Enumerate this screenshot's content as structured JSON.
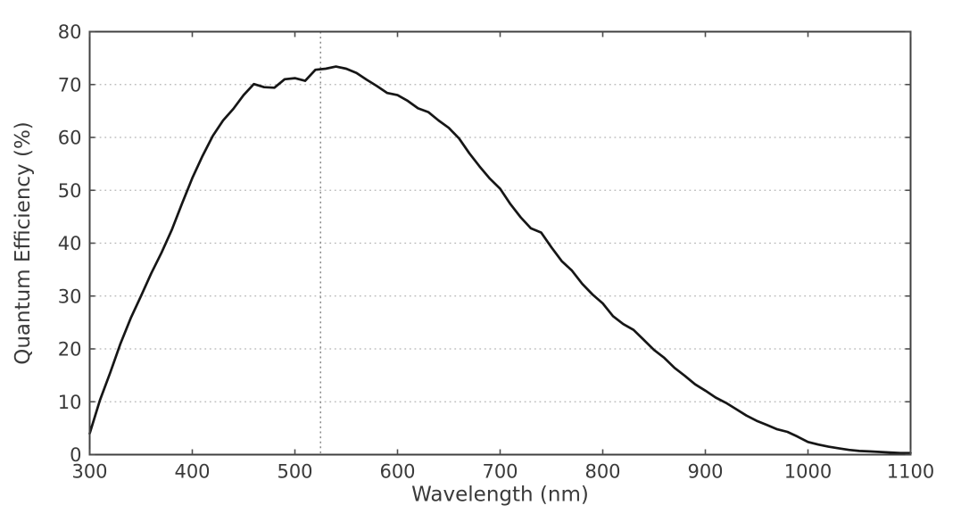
{
  "page": {
    "background": "#ffffff",
    "text_color": "#3a3a3a"
  },
  "chart_data": {
    "type": "line",
    "title": "",
    "xlabel": "Wavelength (nm)",
    "ylabel": "Quantum Efficiency (%)",
    "xlim": [
      300,
      1100
    ],
    "ylim": [
      0,
      80
    ],
    "x_ticks": [
      300,
      400,
      500,
      600,
      700,
      800,
      900,
      1000,
      1100
    ],
    "y_ticks": [
      0,
      10,
      20,
      30,
      40,
      50,
      60,
      70,
      80
    ],
    "grid": {
      "horizontal": true,
      "vertical": false,
      "style": "dotted",
      "color": "#b5b5b5"
    },
    "vline": {
      "x": 525,
      "style": "dotted",
      "color": "#8a8a8a"
    },
    "frame_color": "#404040",
    "tick_color": "#4d4d4d",
    "legend": "none",
    "series": [
      {
        "name": "Quantum efficiency",
        "color": "#161616",
        "x": [
          300,
          310,
          320,
          330,
          340,
          350,
          360,
          370,
          380,
          390,
          400,
          410,
          420,
          430,
          440,
          450,
          460,
          470,
          480,
          490,
          500,
          510,
          520,
          530,
          540,
          550,
          560,
          570,
          580,
          590,
          600,
          610,
          620,
          630,
          640,
          650,
          660,
          670,
          680,
          690,
          700,
          710,
          720,
          730,
          740,
          750,
          760,
          770,
          780,
          790,
          800,
          810,
          820,
          830,
          840,
          850,
          860,
          870,
          880,
          890,
          900,
          910,
          920,
          930,
          940,
          950,
          960,
          970,
          980,
          990,
          1000,
          1010,
          1020,
          1030,
          1040,
          1050,
          1060,
          1070,
          1080,
          1090,
          1100
        ],
        "y": [
          4.0,
          10.3,
          15.5,
          21.0,
          25.8,
          30.0,
          34.3,
          38.2,
          42.5,
          47.5,
          52.3,
          56.5,
          60.3,
          63.2,
          65.4,
          68.0,
          70.1,
          69.5,
          69.4,
          71.0,
          71.2,
          70.7,
          72.8,
          73.0,
          73.4,
          73.0,
          72.2,
          70.9,
          69.7,
          68.4,
          68.0,
          66.9,
          65.5,
          64.8,
          63.2,
          61.8,
          59.8,
          57.0,
          54.5,
          52.2,
          50.3,
          47.4,
          44.9,
          42.8,
          42.0,
          39.2,
          36.6,
          34.8,
          32.3,
          30.3,
          28.6,
          26.2,
          24.7,
          23.6,
          21.7,
          19.8,
          18.3,
          16.4,
          14.9,
          13.3,
          12.1,
          10.8,
          9.8,
          8.6,
          7.4,
          6.4,
          5.6,
          4.8,
          4.3,
          3.4,
          2.4,
          1.9,
          1.5,
          1.2,
          0.9,
          0.7,
          0.6,
          0.5,
          0.4,
          0.3,
          0.3
        ]
      }
    ]
  }
}
